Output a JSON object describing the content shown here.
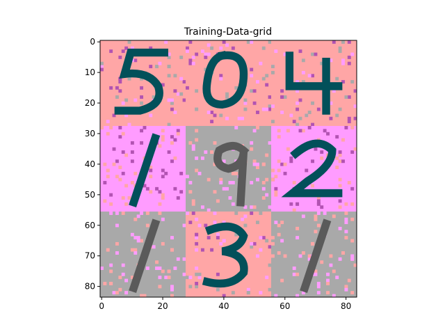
{
  "chart_data": {
    "type": "heatmap",
    "title": "Training-Data-grid",
    "xlabel": "",
    "ylabel": "",
    "xlim": [
      0,
      84
    ],
    "ylim": [
      84,
      0
    ],
    "x_ticks": [
      0,
      20,
      40,
      60,
      80
    ],
    "y_ticks": [
      0,
      10,
      20,
      30,
      40,
      50,
      60,
      70,
      80
    ],
    "grid": false,
    "legend": "none",
    "grid_rows": 3,
    "grid_cols": 3,
    "tile_size": 28,
    "colors": {
      "salmon": "#ffa6a6",
      "pink": "#ff9cff",
      "purple": "#b253b2",
      "gray": "#a9a9a9",
      "dark_teal": "#02505a",
      "dark_green": "#005f00",
      "mid_green": "#3ea94a",
      "dark_gray": "#5a5a5a"
    },
    "tiles": [
      {
        "row": 0,
        "col": 0,
        "digit_label": "5",
        "background": "salmon",
        "ink": "dark_teal"
      },
      {
        "row": 0,
        "col": 1,
        "digit_label": "0",
        "background": "salmon",
        "ink": "dark_teal"
      },
      {
        "row": 0,
        "col": 2,
        "digit_label": "4",
        "background": "salmon",
        "ink": "dark_teal"
      },
      {
        "row": 1,
        "col": 0,
        "digit_label": "1",
        "background": "pink",
        "ink": "dark_teal"
      },
      {
        "row": 1,
        "col": 1,
        "digit_label": "9",
        "background": "gray",
        "ink": "dark_gray"
      },
      {
        "row": 1,
        "col": 2,
        "digit_label": "2",
        "background": "pink",
        "ink": "dark_teal"
      },
      {
        "row": 2,
        "col": 0,
        "digit_label": "1",
        "background": "gray",
        "ink": "dark_gray"
      },
      {
        "row": 2,
        "col": 1,
        "digit_label": "3",
        "background": "salmon",
        "ink": "dark_teal"
      },
      {
        "row": 2,
        "col": 2,
        "digit_label": "1",
        "background": "gray",
        "ink": "dark_gray"
      }
    ]
  }
}
